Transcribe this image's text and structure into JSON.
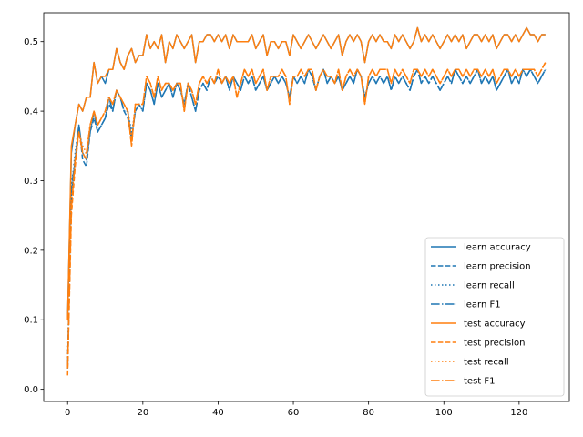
{
  "chart_data": {
    "type": "line",
    "title": "",
    "xlabel": "",
    "ylabel": "",
    "xlim": [
      -6.35,
      133.35
    ],
    "ylim": [
      -0.0175,
      0.5415
    ],
    "grid": false,
    "legend_position": "lower-right",
    "x_ticks": [
      0,
      20,
      40,
      60,
      80,
      100,
      120
    ],
    "y_ticks": [
      0.0,
      0.1,
      0.2,
      0.3,
      0.4,
      0.5
    ],
    "x_tick_labels": [
      "0",
      "20",
      "40",
      "60",
      "80",
      "100",
      "120"
    ],
    "y_tick_labels": [
      "0.0",
      "0.1",
      "0.2",
      "0.3",
      "0.4",
      "0.5"
    ],
    "x": [
      0,
      1,
      2,
      3,
      4,
      5,
      6,
      7,
      8,
      9,
      10,
      11,
      12,
      13,
      14,
      15,
      16,
      17,
      18,
      19,
      20,
      21,
      22,
      23,
      24,
      25,
      26,
      27,
      28,
      29,
      30,
      31,
      32,
      33,
      34,
      35,
      36,
      37,
      38,
      39,
      40,
      41,
      42,
      43,
      44,
      45,
      46,
      47,
      48,
      49,
      50,
      51,
      52,
      53,
      54,
      55,
      56,
      57,
      58,
      59,
      60,
      61,
      62,
      63,
      64,
      65,
      66,
      67,
      68,
      69,
      70,
      71,
      72,
      73,
      74,
      75,
      76,
      77,
      78,
      79,
      80,
      81,
      82,
      83,
      84,
      85,
      86,
      87,
      88,
      89,
      90,
      91,
      92,
      93,
      94,
      95,
      96,
      97,
      98,
      99,
      100,
      101,
      102,
      103,
      104,
      105,
      106,
      107,
      108,
      109,
      110,
      111,
      112,
      113,
      114,
      115,
      116,
      117,
      118,
      119,
      120,
      121,
      122,
      123,
      124,
      125,
      126,
      127
    ],
    "series": [
      {
        "name": "learn accuracy",
        "color": "#1f77b4",
        "dash": "solid",
        "values": [
          0.1,
          0.34,
          0.38,
          0.41,
          0.4,
          0.42,
          0.42,
          0.47,
          0.44,
          0.45,
          0.44,
          0.46,
          0.46,
          0.49,
          0.47,
          0.46,
          0.48,
          0.49,
          0.47,
          0.48,
          0.48,
          0.51,
          0.49,
          0.5,
          0.49,
          0.51,
          0.47,
          0.5,
          0.49,
          0.51,
          0.5,
          0.49,
          0.5,
          0.51,
          0.47,
          0.5,
          0.5,
          0.51,
          0.51,
          0.5,
          0.51,
          0.5,
          0.51,
          0.49,
          0.51,
          0.5,
          0.5,
          0.5,
          0.5,
          0.51,
          0.49,
          0.5,
          0.51,
          0.48,
          0.5,
          0.5,
          0.49,
          0.5,
          0.5,
          0.48,
          0.51,
          0.5,
          0.49,
          0.5,
          0.51,
          0.5,
          0.49,
          0.5,
          0.51,
          0.5,
          0.49,
          0.5,
          0.51,
          0.48,
          0.5,
          0.51,
          0.5,
          0.51,
          0.5,
          0.47,
          0.5,
          0.51,
          0.5,
          0.51,
          0.5,
          0.5,
          0.49,
          0.51,
          0.5,
          0.51,
          0.5,
          0.49,
          0.5,
          0.52,
          0.5,
          0.51,
          0.5,
          0.51,
          0.5,
          0.49,
          0.5,
          0.51,
          0.5,
          0.51,
          0.5,
          0.51,
          0.49,
          0.5,
          0.51,
          0.51,
          0.5,
          0.51,
          0.5,
          0.51,
          0.49,
          0.5,
          0.51,
          0.51,
          0.5,
          0.51,
          0.5,
          0.51,
          0.52,
          0.51,
          0.51,
          0.5,
          0.51,
          0.51
        ]
      },
      {
        "name": "learn precision",
        "color": "#1f77b4",
        "dash": "dashed",
        "values": [
          0.03,
          0.28,
          0.33,
          0.38,
          0.33,
          0.32,
          0.37,
          0.39,
          0.37,
          0.38,
          0.39,
          0.41,
          0.4,
          0.43,
          0.42,
          0.4,
          0.39,
          0.36,
          0.4,
          0.41,
          0.4,
          0.44,
          0.43,
          0.41,
          0.44,
          0.42,
          0.43,
          0.44,
          0.42,
          0.44,
          0.43,
          0.41,
          0.44,
          0.42,
          0.4,
          0.43,
          0.44,
          0.43,
          0.45,
          0.44,
          0.45,
          0.44,
          0.45,
          0.43,
          0.45,
          0.44,
          0.43,
          0.45,
          0.44,
          0.45,
          0.43,
          0.44,
          0.45,
          0.43,
          0.44,
          0.45,
          0.44,
          0.45,
          0.44,
          0.42,
          0.45,
          0.44,
          0.45,
          0.44,
          0.46,
          0.45,
          0.43,
          0.45,
          0.46,
          0.44,
          0.45,
          0.44,
          0.45,
          0.43,
          0.44,
          0.45,
          0.44,
          0.46,
          0.45,
          0.42,
          0.44,
          0.45,
          0.44,
          0.45,
          0.44,
          0.45,
          0.43,
          0.45,
          0.44,
          0.45,
          0.44,
          0.43,
          0.45,
          0.46,
          0.44,
          0.45,
          0.44,
          0.45,
          0.44,
          0.43,
          0.44,
          0.45,
          0.44,
          0.46,
          0.45,
          0.44,
          0.45,
          0.44,
          0.45,
          0.46,
          0.44,
          0.45,
          0.44,
          0.45,
          0.43,
          0.44,
          0.45,
          0.46,
          0.44,
          0.45,
          0.44,
          0.46,
          0.45,
          0.46,
          0.45,
          0.44,
          0.45,
          0.46
        ]
      },
      {
        "name": "learn recall",
        "color": "#1f77b4",
        "dash": "dotted",
        "values": [
          0.04,
          0.29,
          0.34,
          0.38,
          0.34,
          0.33,
          0.37,
          0.4,
          0.37,
          0.38,
          0.39,
          0.42,
          0.4,
          0.43,
          0.42,
          0.4,
          0.4,
          0.37,
          0.4,
          0.41,
          0.41,
          0.44,
          0.43,
          0.41,
          0.44,
          0.42,
          0.43,
          0.44,
          0.42,
          0.44,
          0.43,
          0.41,
          0.44,
          0.42,
          0.4,
          0.43,
          0.44,
          0.43,
          0.45,
          0.44,
          0.45,
          0.44,
          0.45,
          0.43,
          0.45,
          0.44,
          0.43,
          0.45,
          0.44,
          0.45,
          0.43,
          0.44,
          0.45,
          0.43,
          0.44,
          0.45,
          0.44,
          0.45,
          0.44,
          0.42,
          0.45,
          0.44,
          0.45,
          0.44,
          0.46,
          0.45,
          0.43,
          0.45,
          0.46,
          0.44,
          0.45,
          0.44,
          0.45,
          0.43,
          0.44,
          0.45,
          0.44,
          0.46,
          0.45,
          0.42,
          0.44,
          0.45,
          0.44,
          0.45,
          0.44,
          0.45,
          0.43,
          0.45,
          0.44,
          0.45,
          0.44,
          0.43,
          0.45,
          0.46,
          0.44,
          0.45,
          0.44,
          0.45,
          0.44,
          0.43,
          0.44,
          0.45,
          0.44,
          0.46,
          0.45,
          0.44,
          0.45,
          0.44,
          0.45,
          0.46,
          0.44,
          0.45,
          0.44,
          0.45,
          0.43,
          0.44,
          0.45,
          0.46,
          0.44,
          0.45,
          0.44,
          0.46,
          0.45,
          0.46,
          0.45,
          0.44,
          0.45,
          0.46
        ]
      },
      {
        "name": "learn F1",
        "color": "#1f77b4",
        "dash": "dashdot",
        "values": [
          0.03,
          0.29,
          0.33,
          0.38,
          0.34,
          0.33,
          0.37,
          0.4,
          0.37,
          0.38,
          0.39,
          0.42,
          0.4,
          0.43,
          0.42,
          0.4,
          0.4,
          0.36,
          0.4,
          0.41,
          0.4,
          0.44,
          0.43,
          0.41,
          0.44,
          0.42,
          0.43,
          0.44,
          0.42,
          0.44,
          0.43,
          0.41,
          0.44,
          0.42,
          0.4,
          0.43,
          0.44,
          0.43,
          0.45,
          0.44,
          0.45,
          0.44,
          0.45,
          0.43,
          0.45,
          0.44,
          0.43,
          0.45,
          0.44,
          0.45,
          0.43,
          0.44,
          0.45,
          0.43,
          0.44,
          0.45,
          0.44,
          0.45,
          0.44,
          0.42,
          0.45,
          0.44,
          0.45,
          0.44,
          0.46,
          0.45,
          0.43,
          0.45,
          0.46,
          0.44,
          0.45,
          0.44,
          0.45,
          0.43,
          0.44,
          0.45,
          0.44,
          0.46,
          0.45,
          0.42,
          0.44,
          0.45,
          0.44,
          0.45,
          0.44,
          0.45,
          0.43,
          0.45,
          0.44,
          0.45,
          0.44,
          0.43,
          0.45,
          0.46,
          0.44,
          0.45,
          0.44,
          0.45,
          0.44,
          0.43,
          0.44,
          0.45,
          0.44,
          0.46,
          0.45,
          0.44,
          0.45,
          0.44,
          0.45,
          0.46,
          0.44,
          0.45,
          0.44,
          0.45,
          0.43,
          0.44,
          0.45,
          0.46,
          0.44,
          0.45,
          0.44,
          0.46,
          0.45,
          0.46,
          0.45,
          0.44,
          0.45,
          0.46
        ]
      },
      {
        "name": "test accuracy",
        "color": "#ff7f0e",
        "dash": "solid",
        "values": [
          0.1,
          0.35,
          0.38,
          0.41,
          0.4,
          0.42,
          0.42,
          0.47,
          0.44,
          0.45,
          0.45,
          0.46,
          0.46,
          0.49,
          0.47,
          0.46,
          0.48,
          0.49,
          0.47,
          0.48,
          0.48,
          0.51,
          0.49,
          0.5,
          0.49,
          0.51,
          0.47,
          0.5,
          0.49,
          0.51,
          0.5,
          0.49,
          0.5,
          0.51,
          0.47,
          0.5,
          0.5,
          0.51,
          0.51,
          0.5,
          0.51,
          0.5,
          0.51,
          0.49,
          0.51,
          0.5,
          0.5,
          0.5,
          0.5,
          0.51,
          0.49,
          0.5,
          0.51,
          0.48,
          0.5,
          0.5,
          0.49,
          0.5,
          0.5,
          0.48,
          0.51,
          0.5,
          0.49,
          0.5,
          0.51,
          0.5,
          0.49,
          0.5,
          0.51,
          0.5,
          0.49,
          0.5,
          0.51,
          0.48,
          0.5,
          0.51,
          0.5,
          0.51,
          0.5,
          0.47,
          0.5,
          0.51,
          0.5,
          0.51,
          0.5,
          0.5,
          0.49,
          0.51,
          0.5,
          0.51,
          0.5,
          0.49,
          0.5,
          0.52,
          0.5,
          0.51,
          0.5,
          0.51,
          0.5,
          0.49,
          0.5,
          0.51,
          0.5,
          0.51,
          0.5,
          0.51,
          0.49,
          0.5,
          0.51,
          0.51,
          0.5,
          0.51,
          0.5,
          0.51,
          0.49,
          0.5,
          0.51,
          0.51,
          0.5,
          0.51,
          0.5,
          0.51,
          0.52,
          0.51,
          0.51,
          0.5,
          0.51,
          0.51
        ]
      },
      {
        "name": "test precision",
        "color": "#ff7f0e",
        "dash": "dashed",
        "values": [
          0.02,
          0.25,
          0.32,
          0.37,
          0.34,
          0.33,
          0.38,
          0.4,
          0.38,
          0.39,
          0.4,
          0.42,
          0.41,
          0.43,
          0.42,
          0.41,
          0.4,
          0.35,
          0.41,
          0.41,
          0.41,
          0.45,
          0.44,
          0.42,
          0.45,
          0.43,
          0.44,
          0.44,
          0.43,
          0.44,
          0.44,
          0.4,
          0.44,
          0.43,
          0.41,
          0.44,
          0.45,
          0.44,
          0.45,
          0.44,
          0.46,
          0.44,
          0.45,
          0.44,
          0.45,
          0.42,
          0.44,
          0.46,
          0.45,
          0.46,
          0.44,
          0.45,
          0.46,
          0.43,
          0.45,
          0.45,
          0.45,
          0.46,
          0.45,
          0.41,
          0.45,
          0.45,
          0.46,
          0.45,
          0.46,
          0.46,
          0.43,
          0.45,
          0.46,
          0.45,
          0.45,
          0.44,
          0.46,
          0.43,
          0.45,
          0.46,
          0.45,
          0.46,
          0.45,
          0.41,
          0.45,
          0.46,
          0.45,
          0.46,
          0.46,
          0.46,
          0.44,
          0.46,
          0.45,
          0.46,
          0.45,
          0.44,
          0.46,
          0.46,
          0.45,
          0.46,
          0.45,
          0.46,
          0.45,
          0.44,
          0.45,
          0.46,
          0.45,
          0.46,
          0.46,
          0.45,
          0.46,
          0.45,
          0.46,
          0.46,
          0.45,
          0.46,
          0.45,
          0.46,
          0.44,
          0.45,
          0.46,
          0.46,
          0.45,
          0.46,
          0.45,
          0.46,
          0.46,
          0.46,
          0.46,
          0.45,
          0.46,
          0.47
        ]
      },
      {
        "name": "test recall",
        "color": "#ff7f0e",
        "dash": "dotted",
        "values": [
          0.04,
          0.27,
          0.33,
          0.37,
          0.35,
          0.34,
          0.38,
          0.4,
          0.38,
          0.39,
          0.4,
          0.42,
          0.41,
          0.43,
          0.42,
          0.41,
          0.4,
          0.36,
          0.41,
          0.41,
          0.41,
          0.45,
          0.44,
          0.42,
          0.45,
          0.43,
          0.44,
          0.44,
          0.43,
          0.44,
          0.44,
          0.4,
          0.44,
          0.43,
          0.41,
          0.44,
          0.45,
          0.44,
          0.45,
          0.44,
          0.46,
          0.44,
          0.45,
          0.44,
          0.45,
          0.42,
          0.44,
          0.46,
          0.45,
          0.46,
          0.44,
          0.45,
          0.46,
          0.43,
          0.45,
          0.45,
          0.45,
          0.46,
          0.45,
          0.41,
          0.45,
          0.45,
          0.46,
          0.45,
          0.46,
          0.46,
          0.43,
          0.45,
          0.46,
          0.45,
          0.45,
          0.44,
          0.46,
          0.43,
          0.45,
          0.46,
          0.45,
          0.46,
          0.45,
          0.41,
          0.45,
          0.46,
          0.45,
          0.46,
          0.46,
          0.46,
          0.44,
          0.46,
          0.45,
          0.46,
          0.45,
          0.44,
          0.46,
          0.46,
          0.45,
          0.46,
          0.45,
          0.46,
          0.45,
          0.44,
          0.45,
          0.46,
          0.45,
          0.46,
          0.46,
          0.45,
          0.46,
          0.45,
          0.46,
          0.46,
          0.45,
          0.46,
          0.45,
          0.46,
          0.44,
          0.45,
          0.46,
          0.46,
          0.45,
          0.46,
          0.45,
          0.46,
          0.46,
          0.46,
          0.46,
          0.45,
          0.46,
          0.47
        ]
      },
      {
        "name": "test F1",
        "color": "#ff7f0e",
        "dash": "dashdot",
        "values": [
          0.03,
          0.26,
          0.33,
          0.37,
          0.34,
          0.34,
          0.38,
          0.4,
          0.38,
          0.39,
          0.4,
          0.42,
          0.41,
          0.43,
          0.42,
          0.41,
          0.4,
          0.35,
          0.41,
          0.41,
          0.41,
          0.45,
          0.44,
          0.42,
          0.45,
          0.43,
          0.44,
          0.44,
          0.43,
          0.44,
          0.44,
          0.4,
          0.44,
          0.43,
          0.41,
          0.44,
          0.45,
          0.44,
          0.45,
          0.44,
          0.46,
          0.44,
          0.45,
          0.44,
          0.45,
          0.42,
          0.44,
          0.46,
          0.45,
          0.46,
          0.44,
          0.45,
          0.46,
          0.43,
          0.45,
          0.45,
          0.45,
          0.46,
          0.45,
          0.41,
          0.45,
          0.45,
          0.46,
          0.45,
          0.46,
          0.46,
          0.43,
          0.45,
          0.46,
          0.45,
          0.45,
          0.44,
          0.46,
          0.43,
          0.45,
          0.46,
          0.45,
          0.46,
          0.45,
          0.41,
          0.45,
          0.46,
          0.45,
          0.46,
          0.46,
          0.46,
          0.44,
          0.46,
          0.45,
          0.46,
          0.45,
          0.44,
          0.46,
          0.46,
          0.45,
          0.46,
          0.45,
          0.46,
          0.45,
          0.44,
          0.45,
          0.46,
          0.45,
          0.46,
          0.46,
          0.45,
          0.46,
          0.45,
          0.46,
          0.46,
          0.45,
          0.46,
          0.45,
          0.46,
          0.44,
          0.45,
          0.46,
          0.46,
          0.45,
          0.46,
          0.45,
          0.46,
          0.46,
          0.46,
          0.46,
          0.45,
          0.46,
          0.47
        ]
      }
    ]
  }
}
